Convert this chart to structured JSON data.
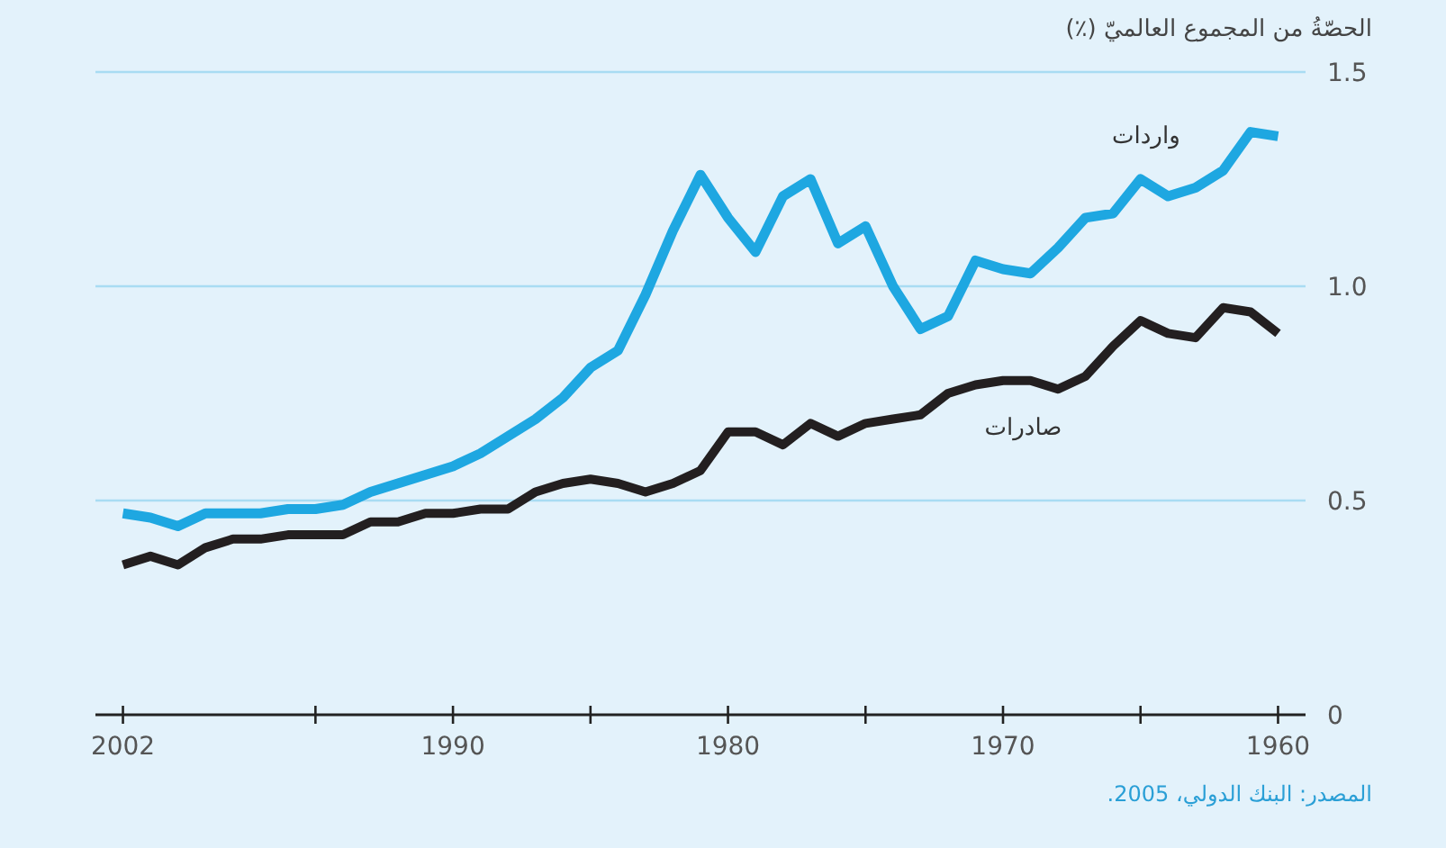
{
  "chart_data": {
    "type": "line",
    "ylabel": "الحصّةُ من المجموع العالميّ (٪)",
    "annotations": [
      "المصدر: البنك الدولي، 2005."
    ],
    "x": [
      2002,
      2001,
      2000,
      1999,
      1998,
      1997,
      1996,
      1995,
      1994,
      1993,
      1992,
      1991,
      1990,
      1989,
      1988,
      1987,
      1986,
      1985,
      1984,
      1983,
      1982,
      1981,
      1980,
      1979,
      1978,
      1977,
      1976,
      1975,
      1974,
      1973,
      1972,
      1971,
      1970,
      1969,
      1968,
      1967,
      1966,
      1965,
      1964,
      1963,
      1962,
      1961,
      1960
    ],
    "series": [
      {
        "name": "واردات",
        "color": "#1ea7e1",
        "values": [
          0.47,
          0.46,
          0.44,
          0.47,
          0.47,
          0.47,
          0.48,
          0.48,
          0.49,
          0.52,
          0.54,
          0.56,
          0.58,
          0.61,
          0.65,
          0.69,
          0.74,
          0.81,
          0.85,
          0.98,
          1.13,
          1.26,
          1.16,
          1.08,
          1.21,
          1.25,
          1.1,
          1.14,
          1.0,
          0.9,
          0.93,
          1.06,
          1.04,
          1.03,
          1.09,
          1.16,
          1.17,
          1.25,
          1.21,
          1.23,
          1.27,
          1.36,
          1.35
        ]
      },
      {
        "name": "صادرات",
        "color": "#231f20",
        "values": [
          0.35,
          0.37,
          0.35,
          0.39,
          0.41,
          0.41,
          0.42,
          0.42,
          0.42,
          0.45,
          0.45,
          0.47,
          0.47,
          0.48,
          0.48,
          0.52,
          0.54,
          0.55,
          0.54,
          0.52,
          0.54,
          0.57,
          0.66,
          0.66,
          0.63,
          0.68,
          0.65,
          0.68,
          0.69,
          0.7,
          0.75,
          0.77,
          0.78,
          0.78,
          0.76,
          0.79,
          0.86,
          0.92,
          0.89,
          0.88,
          0.95,
          0.94,
          0.89
        ]
      }
    ],
    "xlim": [
      2003,
      1959
    ],
    "xticks": [
      2002,
      {
        "value": 1995,
        "label": null
      },
      1990,
      {
        "value": 1985,
        "label": null
      },
      1980,
      {
        "value": 1975,
        "label": null
      },
      1970,
      {
        "value": 1965,
        "label": null
      },
      1960
    ],
    "ylim": [
      0,
      1.5
    ],
    "yticks": [
      0,
      0.5,
      {
        "value": 1,
        "label": "1.0"
      },
      1.5
    ],
    "grid": "y",
    "legend": false,
    "marker": "none",
    "line_style": "solid"
  }
}
